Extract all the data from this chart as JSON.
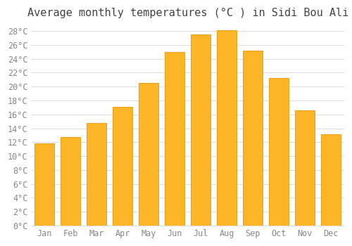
{
  "title": "Average monthly temperatures (°C ) in Sidi Bou Ali",
  "months": [
    "Jan",
    "Feb",
    "Mar",
    "Apr",
    "May",
    "Jun",
    "Jul",
    "Aug",
    "Sep",
    "Oct",
    "Nov",
    "Dec"
  ],
  "values": [
    11.8,
    12.7,
    14.8,
    17.1,
    20.5,
    25.0,
    27.5,
    28.1,
    25.2,
    21.2,
    16.6,
    13.1
  ],
  "bar_color": "#FDB528",
  "bar_edge_color": "#E8960A",
  "background_color": "#ffffff",
  "plot_bg_color": "#ffffff",
  "grid_color": "#dddddd",
  "ylim_max": 29,
  "ytick_values": [
    0,
    2,
    4,
    6,
    8,
    10,
    12,
    14,
    16,
    18,
    20,
    22,
    24,
    26,
    28
  ],
  "title_fontsize": 11,
  "tick_fontsize": 8.5,
  "tick_color": "#888888",
  "title_color": "#444444"
}
